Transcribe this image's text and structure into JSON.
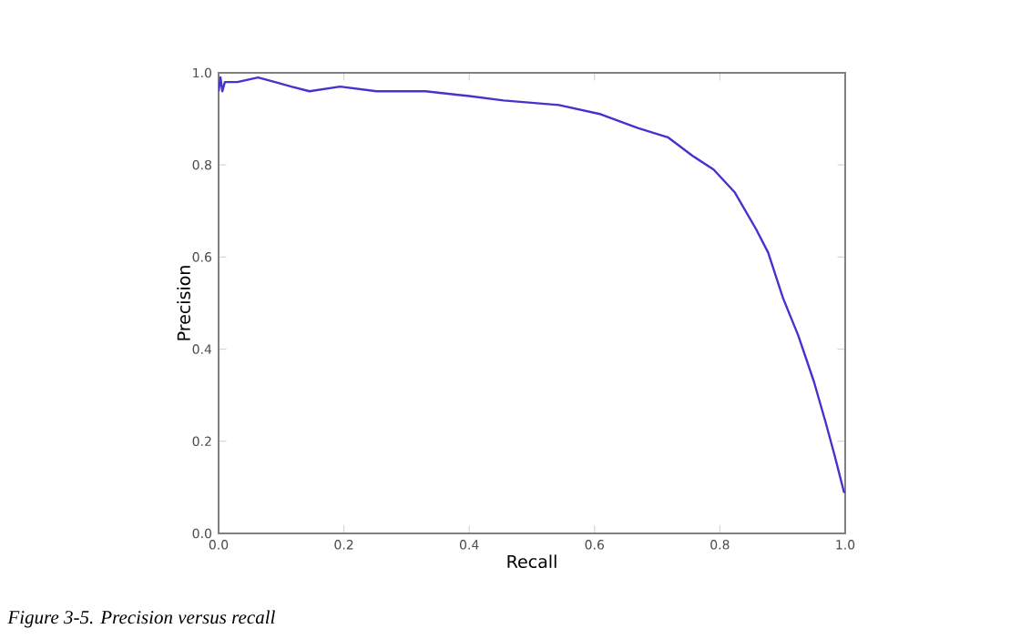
{
  "chart_data": {
    "type": "line",
    "xlabel": "Recall",
    "ylabel": "Precision",
    "annotations": [
      "Figure 3-5. Precision versus recall"
    ],
    "x": [
      0.0,
      0.003,
      0.006,
      0.01,
      0.03,
      0.063,
      0.09,
      0.116,
      0.145,
      0.194,
      0.252,
      0.33,
      0.397,
      0.455,
      0.543,
      0.61,
      0.669,
      0.717,
      0.756,
      0.79,
      0.824,
      0.858,
      0.877,
      0.901,
      0.925,
      0.95,
      0.969,
      0.983,
      0.998,
      1.0
    ],
    "series": [
      {
        "color": "#4433cc",
        "values": [
          0.96,
          0.99,
          0.96,
          0.98,
          0.98,
          0.99,
          0.98,
          0.97,
          0.96,
          0.97,
          0.96,
          0.96,
          0.95,
          0.94,
          0.93,
          0.91,
          0.88,
          0.86,
          0.82,
          0.79,
          0.74,
          0.66,
          0.61,
          0.51,
          0.43,
          0.33,
          0.24,
          0.17,
          0.09,
          0.09
        ]
      }
    ],
    "xlim": [
      0,
      1
    ],
    "ylim": [
      0,
      1
    ],
    "xticks": [
      {
        "value": 0,
        "label": "0.0"
      },
      0.2,
      0.4,
      0.6,
      0.8,
      {
        "value": 1,
        "label": "1.0"
      }
    ],
    "yticks": [
      {
        "value": 0,
        "label": "0.0"
      },
      0.2,
      0.4,
      0.6,
      0.8,
      {
        "value": 1,
        "label": "1.0"
      }
    ]
  }
}
